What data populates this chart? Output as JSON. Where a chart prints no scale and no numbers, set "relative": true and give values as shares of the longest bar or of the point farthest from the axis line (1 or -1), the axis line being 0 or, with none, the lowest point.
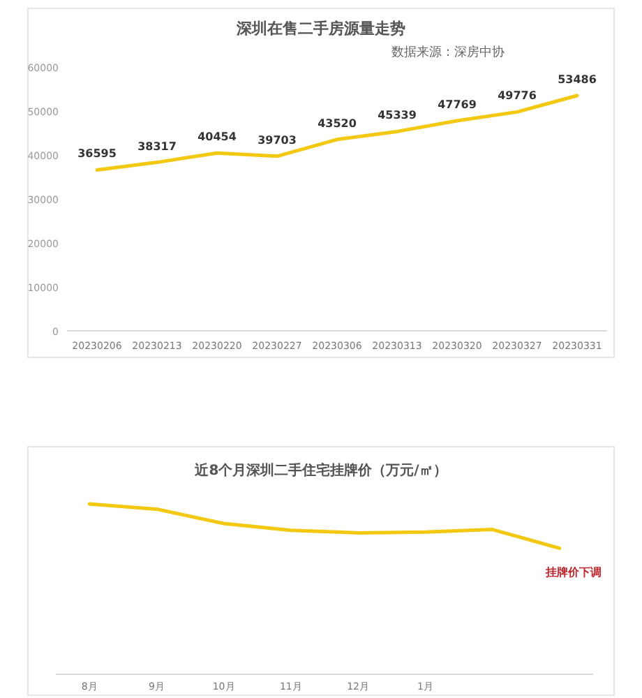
{
  "chart_data": [
    {
      "type": "line",
      "title": "深圳在售二手房源量走势",
      "annotations": [
        "数据来源：深房中协"
      ],
      "categories": [
        "20230206",
        "20230213",
        "20230220",
        "20230227",
        "20230306",
        "20230313",
        "20230320",
        "20230327",
        "20230331"
      ],
      "values": [
        36595,
        38317,
        40454,
        39703,
        43520,
        45339,
        47769,
        49776,
        53486
      ],
      "color": "#f2c811",
      "ylim": [
        0,
        60000
      ],
      "yticks": [
        0,
        10000,
        20000,
        30000,
        40000,
        50000,
        60000
      ],
      "data_labels": true
    },
    {
      "type": "line",
      "title": "近8个月深圳二手住宅挂牌价（万元/㎡）",
      "annotations": [
        "挂牌价下调"
      ],
      "categories": [
        "8月",
        "9月",
        "10月",
        "11月",
        "12月",
        "1月",
        null,
        null
      ],
      "values": [
        1,
        0.97,
        0.885,
        0.845,
        0.83,
        0.835,
        0.85,
        0.74
      ],
      "color": "#f2c811",
      "relative": true
    }
  ]
}
